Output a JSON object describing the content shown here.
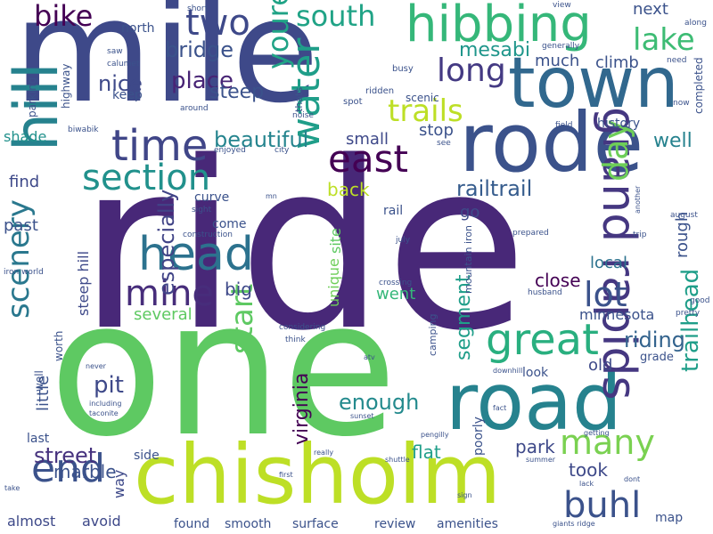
{
  "words": [
    {
      "text": "ride",
      "color": "#482878"
    },
    {
      "text": "mile",
      "color": "#3e4989"
    },
    {
      "text": "one",
      "color": "#5ec962"
    },
    {
      "text": "chisholm",
      "color": "#bddf26"
    },
    {
      "text": "rode",
      "color": "#3b528b"
    },
    {
      "text": "town",
      "color": "#31688e"
    },
    {
      "text": "road",
      "color": "#26828e"
    },
    {
      "text": "hill",
      "color": "#26828e"
    },
    {
      "text": "hibbing",
      "color": "#35b779"
    },
    {
      "text": "time",
      "color": "#404688"
    },
    {
      "text": "head",
      "color": "#2c728e"
    },
    {
      "text": "grand rapids",
      "color": "#453781"
    },
    {
      "text": "section",
      "color": "#21918c"
    },
    {
      "text": "water",
      "color": "#1f9e89"
    },
    {
      "text": "great",
      "color": "#29af7f"
    },
    {
      "text": "end",
      "color": "#3b528b"
    },
    {
      "text": "east",
      "color": "#440154"
    },
    {
      "text": "mine",
      "color": "#472d7b"
    },
    {
      "text": "long",
      "color": "#443a83"
    },
    {
      "text": "two",
      "color": "#3e4989"
    },
    {
      "text": "lot",
      "color": "#3b528b"
    },
    {
      "text": "buhl",
      "color": "#3b528b"
    },
    {
      "text": "day",
      "color": "#6ece58"
    },
    {
      "text": "many",
      "color": "#7ad151"
    },
    {
      "text": "scenery",
      "color": "#2a788e"
    },
    {
      "text": "lake",
      "color": "#3dbc74"
    },
    {
      "text": "trails",
      "color": "#bddf26"
    },
    {
      "text": "south",
      "color": "#20a386"
    },
    {
      "text": "youre",
      "color": "#20a386"
    },
    {
      "text": "bike",
      "color": "#440154"
    },
    {
      "text": "start",
      "color": "#5ec962"
    },
    {
      "text": "trailhead",
      "color": "#1f9e89"
    },
    {
      "text": "beautiful",
      "color": "#25848e"
    },
    {
      "text": "place",
      "color": "#482475"
    },
    {
      "text": "railtrail",
      "color": "#365c8d"
    },
    {
      "text": "bridge",
      "color": "#3b528b"
    },
    {
      "text": "riding",
      "color": "#33638d"
    },
    {
      "text": "street",
      "color": "#46327e"
    },
    {
      "text": "enough",
      "color": "#238a8d"
    },
    {
      "text": "especially",
      "color": "#414487"
    },
    {
      "text": "pit",
      "color": "#3e4989"
    },
    {
      "text": "steep",
      "color": "#3b528b"
    },
    {
      "text": "nice",
      "color": "#3e4989"
    },
    {
      "text": "mesabi",
      "color": "#1f968b"
    },
    {
      "text": "virginia",
      "color": "#440154"
    },
    {
      "text": "segment",
      "color": "#1f9e89"
    },
    {
      "text": "well",
      "color": "#26828e"
    },
    {
      "text": "back",
      "color": "#bddf26"
    },
    {
      "text": "marble",
      "color": "#3b528b"
    },
    {
      "text": "park",
      "color": "#3e4989"
    },
    {
      "text": "took",
      "color": "#3e4989"
    },
    {
      "text": "flat",
      "color": "#1f9e89"
    },
    {
      "text": "shade",
      "color": "#21918c"
    },
    {
      "text": "small",
      "color": "#3e4989"
    },
    {
      "text": "go",
      "color": "#3e4989"
    },
    {
      "text": "big",
      "color": "#3e4989"
    },
    {
      "text": "close",
      "color": "#440154"
    },
    {
      "text": "went",
      "color": "#35b779"
    },
    {
      "text": "local",
      "color": "#2c728e"
    },
    {
      "text": "past",
      "color": "#3b528b"
    },
    {
      "text": "find",
      "color": "#3e4989"
    },
    {
      "text": "unique",
      "color": "#6ece58"
    },
    {
      "text": "site",
      "color": "#5ec962"
    },
    {
      "text": "several",
      "color": "#5ec962"
    },
    {
      "text": "rough",
      "color": "#3b528b"
    },
    {
      "text": "little",
      "color": "#3b528b"
    },
    {
      "text": "much",
      "color": "#3b528b"
    },
    {
      "text": "climb",
      "color": "#3b528b"
    },
    {
      "text": "next",
      "color": "#3b528b"
    },
    {
      "text": "stop",
      "color": "#3b528b"
    },
    {
      "text": "minnesota",
      "color": "#3b528b"
    },
    {
      "text": "old",
      "color": "#3e4989"
    },
    {
      "text": "way",
      "color": "#3e4989"
    },
    {
      "text": "steep hill",
      "color": "#3e4989"
    },
    {
      "text": "almost",
      "color": "#3e4989"
    },
    {
      "text": "avoid",
      "color": "#3e4989"
    },
    {
      "text": "review",
      "color": "#3b528b"
    },
    {
      "text": "amenities",
      "color": "#3b528b"
    },
    {
      "text": "found",
      "color": "#3b528b"
    },
    {
      "text": "smooth",
      "color": "#3b528b"
    },
    {
      "text": "surface",
      "color": "#3b528b"
    },
    {
      "text": "side",
      "color": "#3b528b"
    },
    {
      "text": "last",
      "color": "#3b528b"
    },
    {
      "text": "rail",
      "color": "#3b528b"
    },
    {
      "text": "look",
      "color": "#3b528b"
    },
    {
      "text": "map",
      "color": "#3b528b"
    },
    {
      "text": "history",
      "color": "#3b528b"
    },
    {
      "text": "grade",
      "color": "#3b528b"
    },
    {
      "text": "poorly",
      "color": "#3b528b"
    },
    {
      "text": "come",
      "color": "#3b528b"
    },
    {
      "text": "curve",
      "color": "#3b528b"
    },
    {
      "text": "keep",
      "color": "#3b528b"
    },
    {
      "text": "highway",
      "color": "#3b528b"
    },
    {
      "text": "north",
      "color": "#3b528b"
    },
    {
      "text": "parking",
      "color": "#3b528b"
    },
    {
      "text": "completed",
      "color": "#3b528b"
    },
    {
      "text": "mountain iron",
      "color": "#3b528b"
    },
    {
      "text": "camping",
      "color": "#3b528b"
    },
    {
      "text": "worth",
      "color": "#3b528b"
    },
    {
      "text": "well",
      "color": "#3b528b"
    },
    {
      "text": "scenic",
      "color": "#3b528b"
    },
    {
      "text": "thats",
      "color": "#3b528b"
    },
    {
      "text": "ridden",
      "color": "#3b528b"
    },
    {
      "text": "busy",
      "color": "#3b528b"
    },
    {
      "text": "spot",
      "color": "#3b528b"
    },
    {
      "text": "noise",
      "color": "#3b528b"
    },
    {
      "text": "around",
      "color": "#3b528b"
    },
    {
      "text": "calumet",
      "color": "#3b528b"
    },
    {
      "text": "saw",
      "color": "#3b528b"
    },
    {
      "text": "short",
      "color": "#3b528b"
    },
    {
      "text": "view",
      "color": "#3b528b"
    },
    {
      "text": "generally",
      "color": "#3b528b"
    },
    {
      "text": "now",
      "color": "#3b528b"
    },
    {
      "text": "need",
      "color": "#3b528b"
    },
    {
      "text": "along",
      "color": "#3b528b"
    },
    {
      "text": "field",
      "color": "#3b528b"
    },
    {
      "text": "biwabik",
      "color": "#3b528b"
    },
    {
      "text": "enjoyed",
      "color": "#3b528b"
    },
    {
      "text": "city",
      "color": "#3b528b"
    },
    {
      "text": "see",
      "color": "#3b528b"
    },
    {
      "text": "mn",
      "color": "#3b528b"
    },
    {
      "text": "sight",
      "color": "#3b528b"
    },
    {
      "text": "construction",
      "color": "#3b528b"
    },
    {
      "text": "iron world",
      "color": "#3b528b"
    },
    {
      "text": "july",
      "color": "#3b528b"
    },
    {
      "text": "prepared",
      "color": "#3b528b"
    },
    {
      "text": "trip",
      "color": "#3b528b"
    },
    {
      "text": "another",
      "color": "#3b528b"
    },
    {
      "text": "august",
      "color": "#3b528b"
    },
    {
      "text": "crossing",
      "color": "#3b528b"
    },
    {
      "text": "husband",
      "color": "#3b528b"
    },
    {
      "text": "good",
      "color": "#3b528b"
    },
    {
      "text": "pretty",
      "color": "#3b528b"
    },
    {
      "text": "considering",
      "color": "#3b528b"
    },
    {
      "text": "think",
      "color": "#3b528b"
    },
    {
      "text": "atv",
      "color": "#3b528b"
    },
    {
      "text": "never",
      "color": "#3b528b"
    },
    {
      "text": "including",
      "color": "#3b528b"
    },
    {
      "text": "taconite",
      "color": "#3b528b"
    },
    {
      "text": "downhill",
      "color": "#3b528b"
    },
    {
      "text": "fact",
      "color": "#3b528b"
    },
    {
      "text": "pengilly",
      "color": "#3b528b"
    },
    {
      "text": "getting",
      "color": "#3b528b"
    },
    {
      "text": "sunset",
      "color": "#3b528b"
    },
    {
      "text": "really",
      "color": "#3b528b"
    },
    {
      "text": "shuttle",
      "color": "#3b528b"
    },
    {
      "text": "summer",
      "color": "#3b528b"
    },
    {
      "text": "first",
      "color": "#3b528b"
    },
    {
      "text": "take",
      "color": "#3b528b"
    },
    {
      "text": "sign",
      "color": "#3b528b"
    },
    {
      "text": "lack",
      "color": "#3b528b"
    },
    {
      "text": "dont",
      "color": "#3b528b"
    },
    {
      "text": "giants ridge",
      "color": "#3b528b"
    }
  ]
}
